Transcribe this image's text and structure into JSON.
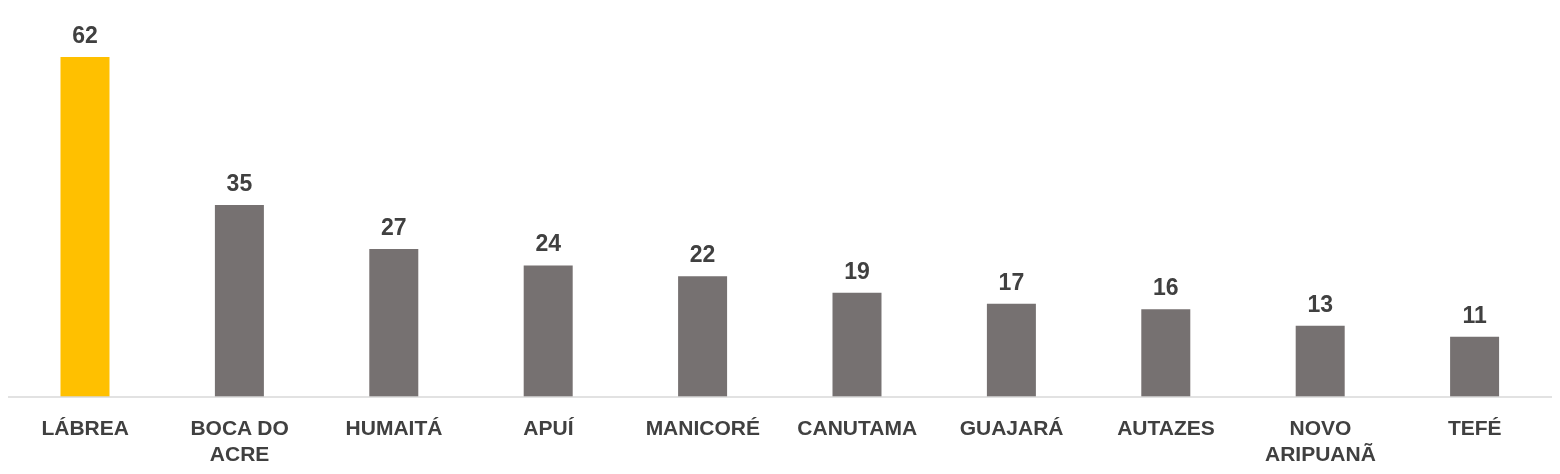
{
  "chart_data": {
    "type": "bar",
    "categories": [
      "LÁBREA",
      "BOCA DO ACRE",
      "HUMAITÁ",
      "APUÍ",
      "MANICORÉ",
      "CANUTAMA",
      "GUAJARÁ",
      "AUTAZES",
      "NOVO ARIPUANÃ",
      "TEFÉ"
    ],
    "values": [
      62,
      35,
      27,
      24,
      22,
      19,
      17,
      16,
      13,
      11
    ],
    "colors": [
      "#ffc000",
      "#767171",
      "#767171",
      "#767171",
      "#767171",
      "#767171",
      "#767171",
      "#767171",
      "#767171",
      "#767171"
    ],
    "data_labels": true,
    "grid": false,
    "legend": false
  }
}
